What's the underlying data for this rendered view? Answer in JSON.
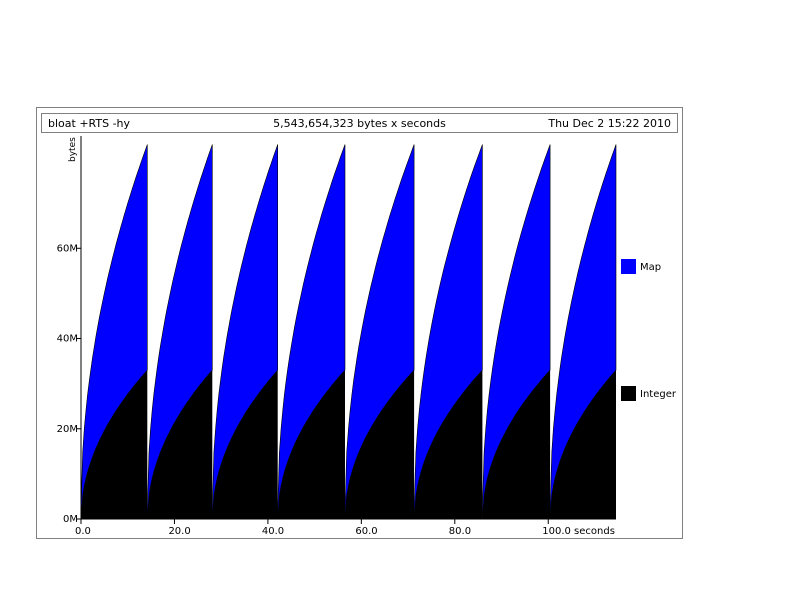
{
  "header": {
    "program": "bloat +RTS -hy",
    "total": "5,543,654,323 bytes x seconds",
    "date": "Thu Dec  2 15:22 2010"
  },
  "chart_data": {
    "type": "area",
    "stacked": true,
    "ylabel": "bytes",
    "xlim": [
      0,
      114.5
    ],
    "ylim": [
      0,
      84
    ],
    "y_ticks": [
      {
        "value": 0,
        "label": "0M"
      },
      {
        "value": 20,
        "label": "20M"
      },
      {
        "value": 40,
        "label": "40M"
      },
      {
        "value": 60,
        "label": "60M"
      }
    ],
    "x_ticks": [
      {
        "value": 0,
        "label": "0.0"
      },
      {
        "value": 20,
        "label": "20.0"
      },
      {
        "value": 40,
        "label": "40.0"
      },
      {
        "value": 60,
        "label": "60.0"
      },
      {
        "value": 80,
        "label": "80.0"
      },
      {
        "value": 100,
        "label": "100.0 seconds"
      }
    ],
    "cycles": [
      {
        "start": 0.0,
        "end": 14.2
      },
      {
        "start": 14.2,
        "end": 28.1
      },
      {
        "start": 28.1,
        "end": 42.1
      },
      {
        "start": 42.1,
        "end": 56.5
      },
      {
        "start": 56.5,
        "end": 71.3
      },
      {
        "start": 71.3,
        "end": 85.9
      },
      {
        "start": 85.9,
        "end": 100.4
      },
      {
        "start": 100.4,
        "end": 114.5
      }
    ],
    "series": [
      {
        "name": "Integer",
        "color": "#000000",
        "peak": 33,
        "trough": 0
      },
      {
        "name": "Map",
        "color": "#0000ff",
        "peak": 50,
        "trough": 2
      }
    ],
    "legend": [
      {
        "label": "Map",
        "color": "#0000ff"
      },
      {
        "label": "Integer",
        "color": "#000000"
      }
    ],
    "legend_position": "right"
  }
}
